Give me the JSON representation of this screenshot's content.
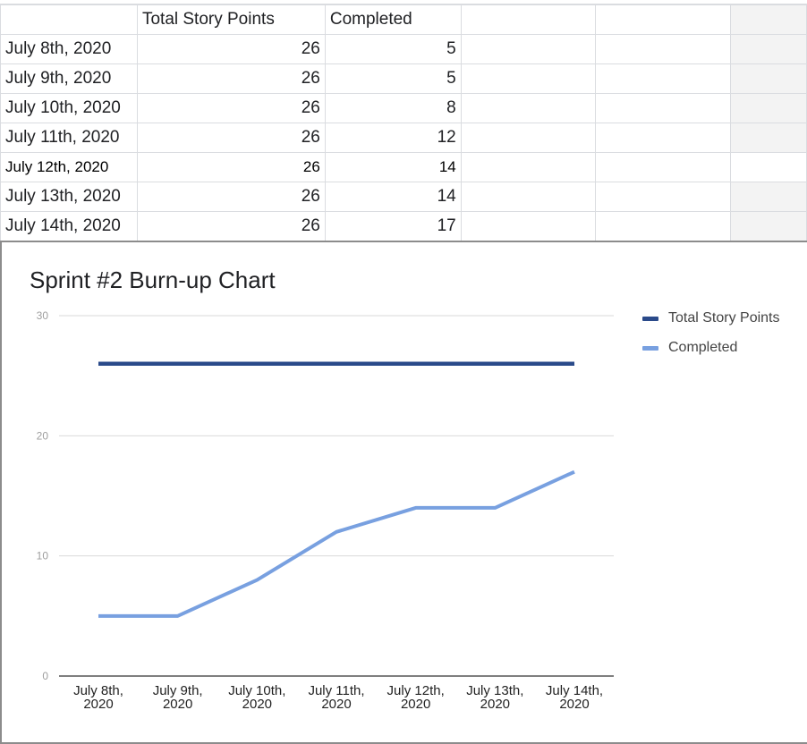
{
  "sheet": {
    "header": [
      "",
      "Total Story Points",
      "Completed",
      "",
      "",
      ""
    ],
    "rows": [
      {
        "date": "July 8th, 2020",
        "total": "26",
        "completed": "5"
      },
      {
        "date": "July 9th, 2020",
        "total": "26",
        "completed": "5"
      },
      {
        "date": "July 10th, 2020",
        "total": "26",
        "completed": "8"
      },
      {
        "date": "July 11th, 2020",
        "total": "26",
        "completed": "12"
      },
      {
        "date": "July 12th, 2020",
        "total": "26",
        "completed": "14"
      },
      {
        "date": "July 13th, 2020",
        "total": "26",
        "completed": "14"
      },
      {
        "date": "July 14th, 2020",
        "total": "26",
        "completed": "17"
      }
    ]
  },
  "chart_data": {
    "type": "line",
    "title": "Sprint #2 Burn-up Chart",
    "categories": [
      "July 8th, 2020",
      "July 9th, 2020",
      "July 10th, 2020",
      "July 11th, 2020",
      "July 12th, 2020",
      "July 13th, 2020",
      "July 14th, 2020"
    ],
    "category_lines": [
      [
        "July 8th,",
        "2020"
      ],
      [
        "July 9th,",
        "2020"
      ],
      [
        "July 10th,",
        "2020"
      ],
      [
        "July 11th,",
        "2020"
      ],
      [
        "July 12th,",
        "2020"
      ],
      [
        "July 13th,",
        "2020"
      ],
      [
        "July 14th,",
        "2020"
      ]
    ],
    "series": [
      {
        "name": "Total Story Points",
        "color": "#2a4a8a",
        "values": [
          26,
          26,
          26,
          26,
          26,
          26,
          26
        ]
      },
      {
        "name": "Completed",
        "color": "#78a0e0",
        "values": [
          5,
          5,
          8,
          12,
          14,
          14,
          17
        ]
      }
    ],
    "ylim": [
      0,
      30
    ],
    "yticks": [
      0,
      10,
      20,
      30
    ],
    "grid": true,
    "legend_position": "right"
  }
}
